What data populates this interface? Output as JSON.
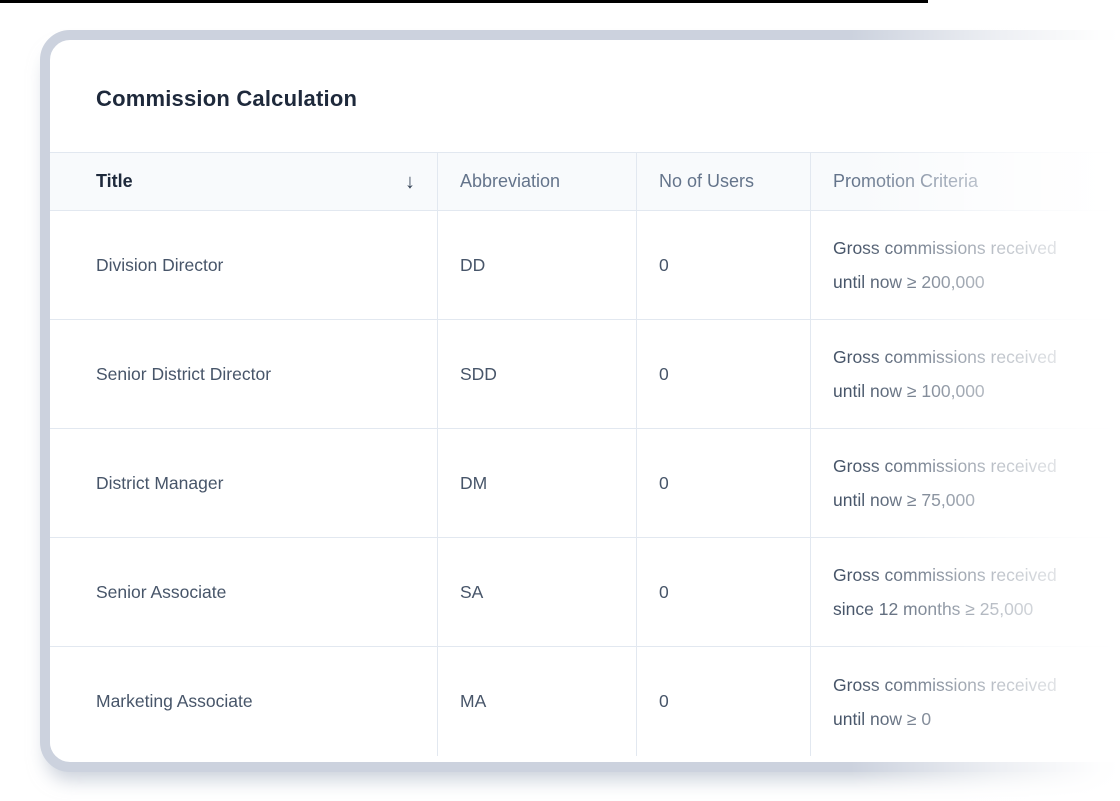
{
  "accent": {
    "top_bar_color": "#000000",
    "card_border_color": "#ccd2de",
    "divider_color": "#e2e8f0",
    "header_bg_color": "#f8fafc",
    "heading_text_color": "#1e293b",
    "body_text_color": "#475569",
    "muted_text_color": "#64748b"
  },
  "card": {
    "title": "Commission Calculation",
    "table": {
      "columns": [
        {
          "label": "Title",
          "sorted": "desc",
          "sort_icon": "↓"
        },
        {
          "label": "Abbreviation"
        },
        {
          "label": "No of Users"
        },
        {
          "label": "Promotion Criteria"
        }
      ],
      "rows": [
        {
          "title": "Division Director",
          "abbreviation": "DD",
          "users": "0",
          "criteria_line1": "Gross commissions received",
          "criteria_line2": "until now ≥ 200,000"
        },
        {
          "title": "Senior District Director",
          "abbreviation": "SDD",
          "users": "0",
          "criteria_line1": "Gross commissions received",
          "criteria_line2": "until now ≥ 100,000"
        },
        {
          "title": "District Manager",
          "abbreviation": "DM",
          "users": "0",
          "criteria_line1": "Gross commissions received",
          "criteria_line2": "until now ≥ 75,000"
        },
        {
          "title": "Senior Associate",
          "abbreviation": "SA",
          "users": "0",
          "criteria_line1": "Gross commissions received",
          "criteria_line2": "since 12 months ≥ 25,000"
        },
        {
          "title": "Marketing Associate",
          "abbreviation": "MA",
          "users": "0",
          "criteria_line1": "Gross commissions received",
          "criteria_line2": "until now ≥ 0"
        }
      ]
    }
  }
}
